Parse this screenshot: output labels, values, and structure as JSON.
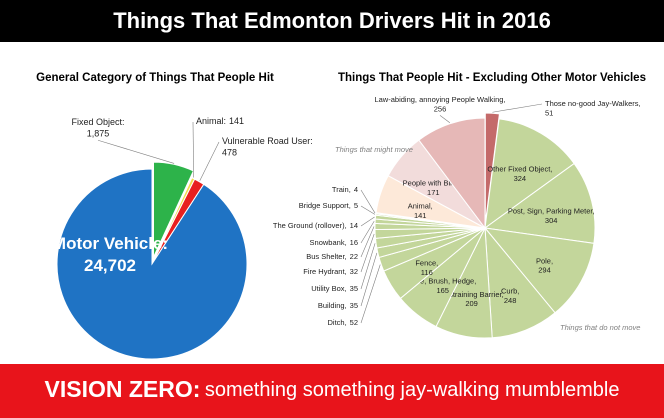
{
  "title": "Things That Edmonton Drivers Hit in 2016",
  "footer": {
    "emphasis": "VISION ZERO:",
    "text": "something something jay-walking mumblemble"
  },
  "chart_data": [
    {
      "type": "pie",
      "title": "General Category of Things That People Hit",
      "categories": [
        "Fixed Object:",
        "Animal:",
        "Vulnerable Road User:",
        "Motor Vehicle:"
      ],
      "values": [
        1875,
        141,
        478,
        24702
      ],
      "value_labels": [
        "1,875",
        "141",
        "478",
        "24,702"
      ],
      "colors": [
        "#2db34a",
        "#f2dc4a",
        "#e8201f",
        "#1f73c4"
      ]
    },
    {
      "type": "pie",
      "title": "Things That People Hit - Excluding Other Motor Vehicles",
      "categories": [
        "Those no-good Jay-Walkers,",
        "Other Fixed Object,",
        "Post, Sign, Parking Meter,",
        "Pole,",
        "Curb,",
        "Restraining Barrier,",
        "Tree, Brush, Hedge,",
        "Fence,",
        "Ditch,",
        "Building,",
        "Utility Box,",
        "Fire Hydrant,",
        "Bus Shelter,",
        "Snowbank,",
        "The Ground (rollover),",
        "Bridge Support,",
        "Train,",
        "Animal,",
        "People with Bikes,",
        "Law-abiding, annoying People Walking,"
      ],
      "values": [
        51,
        324,
        304,
        294,
        248,
        209,
        165,
        116,
        52,
        35,
        35,
        32,
        22,
        16,
        14,
        5,
        4,
        141,
        171,
        256
      ],
      "colors": [
        "#c46a6a",
        "#c3d69b",
        "#c3d69b",
        "#c3d69b",
        "#c3d69b",
        "#c3d69b",
        "#c3d69b",
        "#c3d69b",
        "#c3d69b",
        "#c3d69b",
        "#c3d69b",
        "#c3d69b",
        "#c3d69b",
        "#c3d69b",
        "#c3d69b",
        "#c3d69b",
        "#c3d69b",
        "#fde9d9",
        "#f2dcdb",
        "#e6b8b7"
      ],
      "annotations": [
        "Things that might move",
        "Things that do not move"
      ]
    }
  ]
}
